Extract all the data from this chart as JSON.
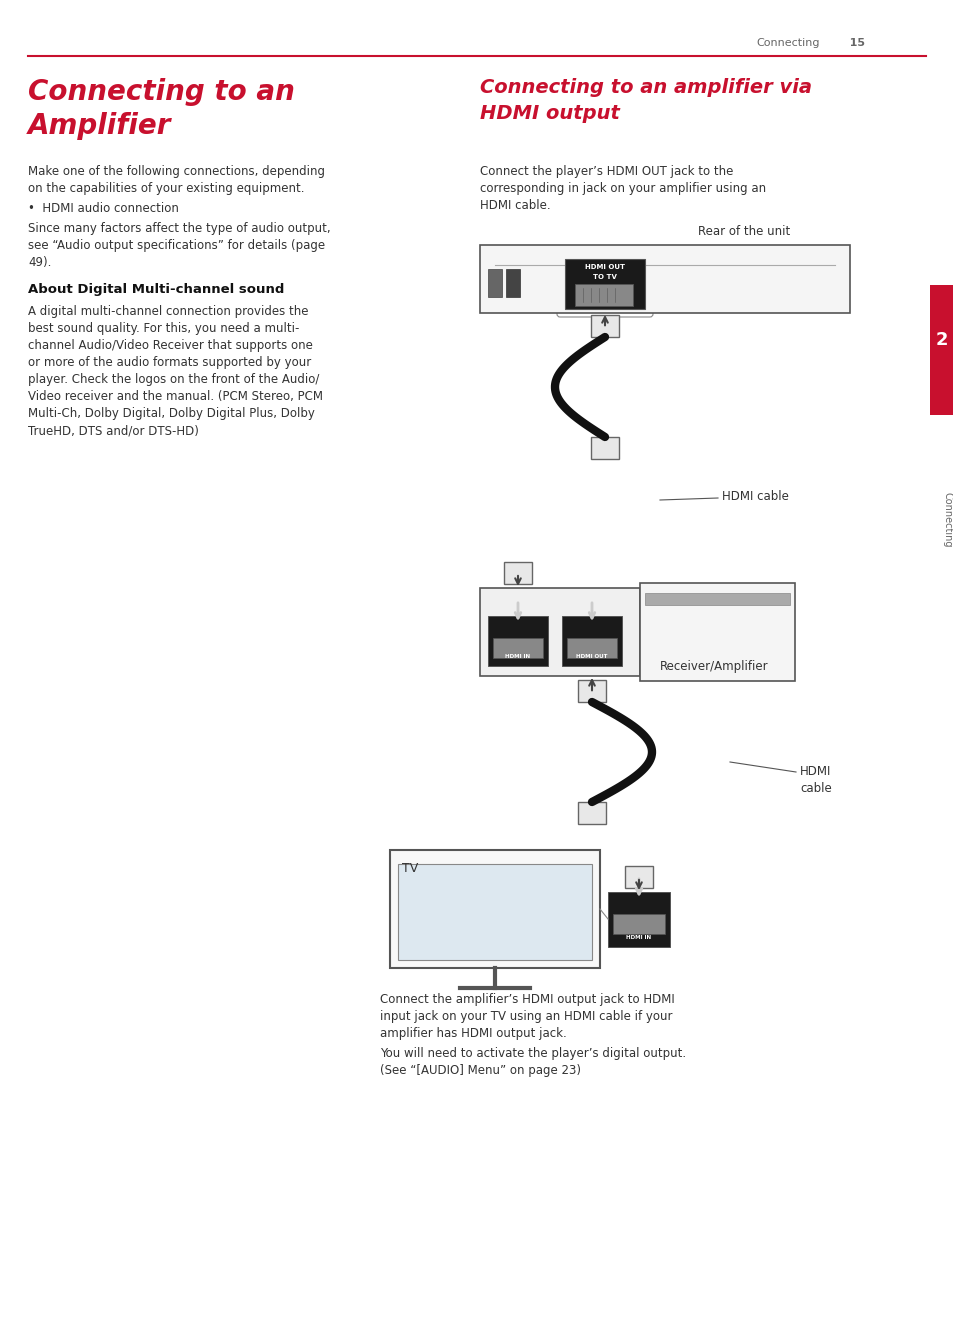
{
  "page_bg": "#ffffff",
  "header_line_color": "#c8102e",
  "header_text": "Connecting",
  "header_page": "15",
  "header_text_color": "#666666",
  "side_tab_color": "#c8102e",
  "side_tab_text": "2",
  "side_tab_label": "Connecting",
  "title_left_color": "#c8102e",
  "title_left_line1": "Connecting to an",
  "title_left_line2": "Amplifier",
  "title_right_color": "#c8102e",
  "title_right_line1": "Connecting to an amplifier via",
  "title_right_line2": "HDMI output",
  "body_color": "#333333",
  "dark_color": "#222222",
  "light_gray": "#f0f0f0",
  "mid_gray": "#cccccc",
  "dark_gray": "#555555"
}
